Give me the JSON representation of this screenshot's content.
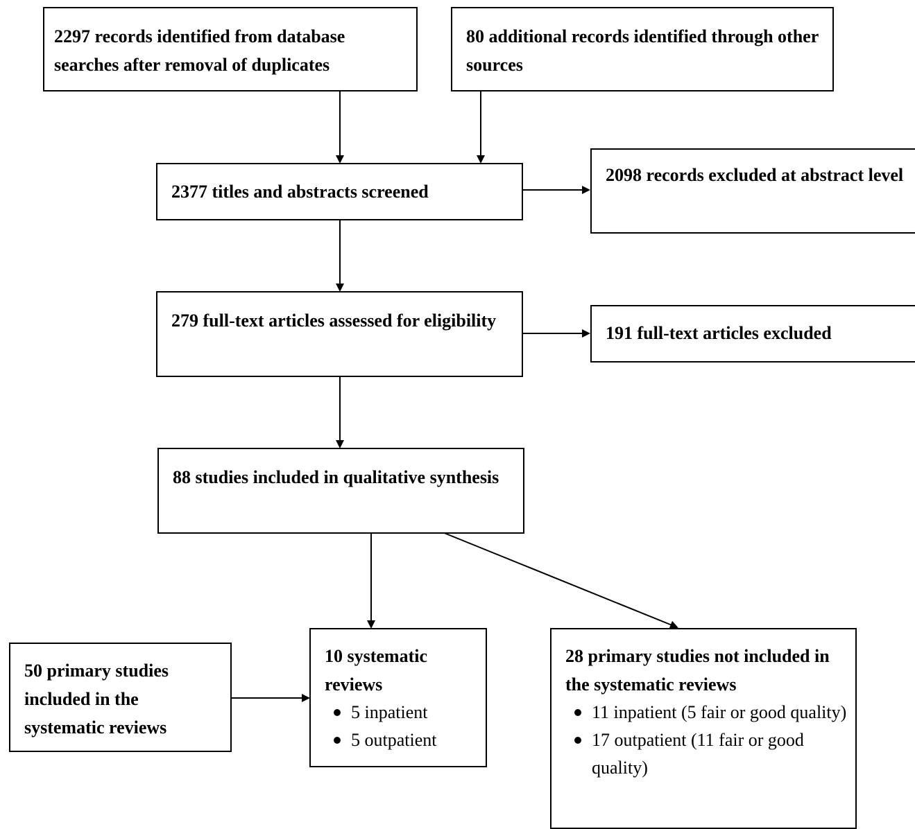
{
  "boxes": {
    "db_search": {
      "text": "2297 records identified from database searches after removal of duplicates"
    },
    "other_sources": {
      "text": "80 additional records identified through other sources"
    },
    "screened": {
      "text": "2377 titles and abstracts screened"
    },
    "excluded_abstract": {
      "text": "2098 records excluded at abstract level"
    },
    "fulltext_assessed": {
      "text": "279 full-text articles assessed for eligibility"
    },
    "fulltext_excluded": {
      "text": "191 full-text articles excluded"
    },
    "qualitative": {
      "text": "88 studies included in qualitative synthesis"
    },
    "primary_in_reviews": {
      "text": "50 primary studies included in the systematic reviews"
    },
    "systematic_reviews": {
      "text": "10 systematic reviews",
      "items": [
        "5 inpatient",
        "5 outpatient"
      ]
    },
    "primary_not_in_reviews": {
      "text": "28 primary studies not included in the systematic reviews",
      "items": [
        "11 inpatient (5 fair or good quality)",
        "17 outpatient (11 fair or good quality)"
      ]
    }
  }
}
